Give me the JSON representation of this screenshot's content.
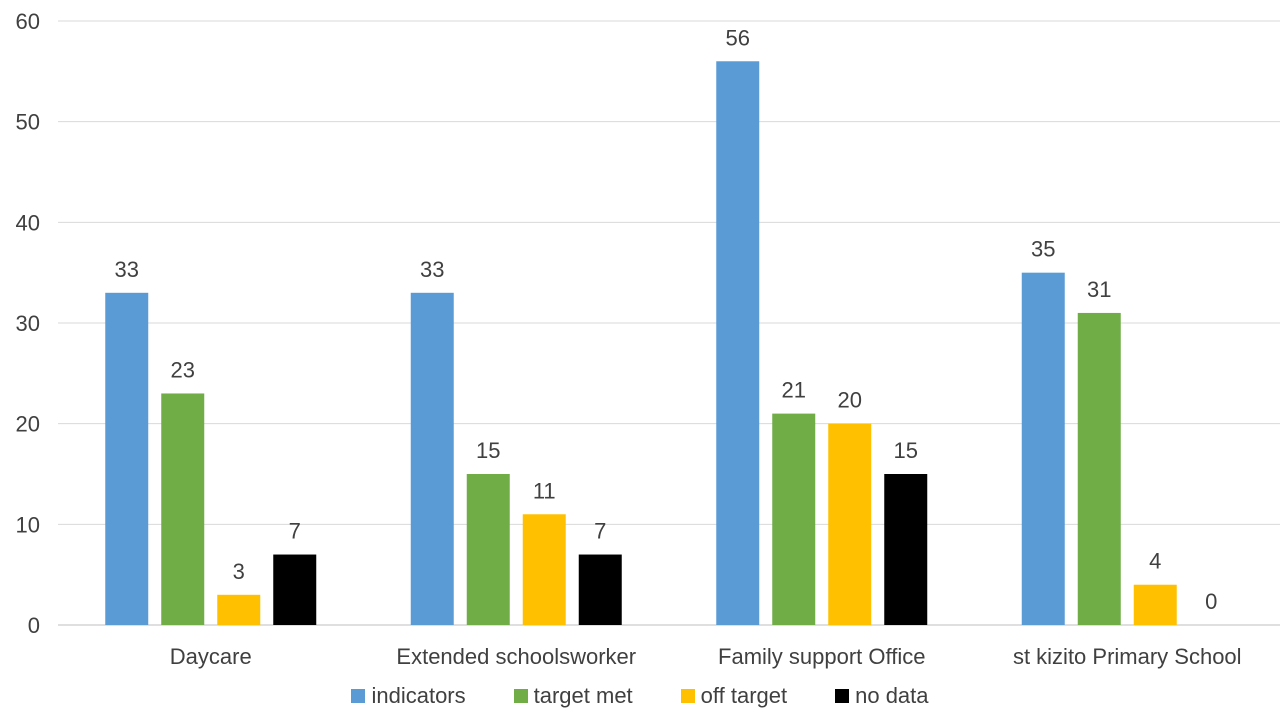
{
  "chart_data": {
    "type": "bar",
    "title": "",
    "xlabel": "",
    "ylabel": "",
    "categories": [
      "Daycare",
      "Extended schoolsworker",
      "Family support Office",
      "st kizito Primary School"
    ],
    "ylim": [
      0,
      60
    ],
    "yticks": [
      0,
      10,
      20,
      30,
      40,
      50,
      60
    ],
    "grid": true,
    "legend_position": "bottom",
    "series": [
      {
        "name": "indicators",
        "color": "#5B9BD5",
        "values": [
          33,
          33,
          56,
          35
        ]
      },
      {
        "name": "target met",
        "color": "#70AD47",
        "values": [
          23,
          15,
          21,
          31
        ]
      },
      {
        "name": "off target",
        "color": "#FFC000",
        "values": [
          3,
          11,
          20,
          4
        ]
      },
      {
        "name": "no data",
        "color": "#000000",
        "values": [
          7,
          7,
          15,
          0
        ]
      }
    ]
  }
}
